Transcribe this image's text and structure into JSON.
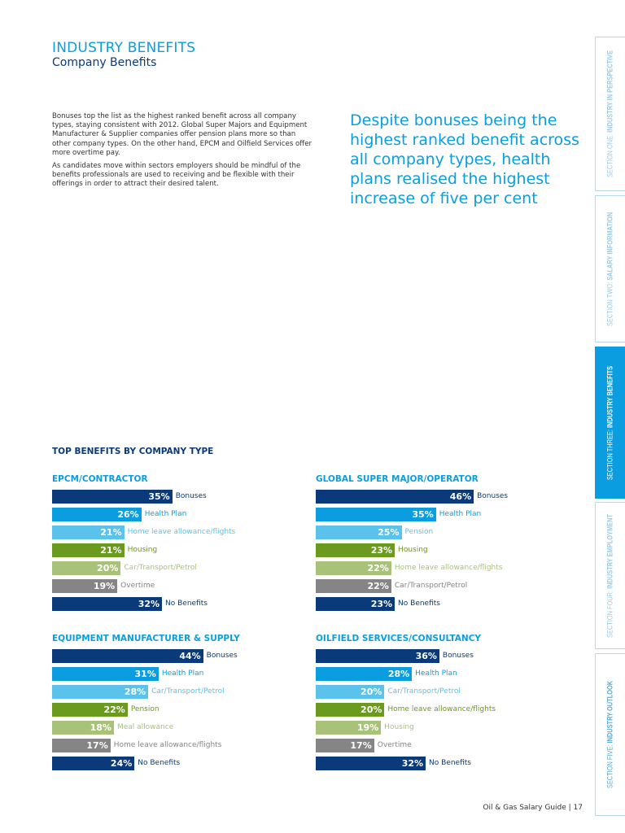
{
  "header": {
    "title": "INDUSTRY BENEFITS",
    "subtitle": "Company Benefits"
  },
  "body": [
    "Bonuses top the list as the highest ranked benefit across all company types, staying consistent with 2012. Global Super Majors and Equipment Manufacturer & Supplier companies offer pension plans more so than other company types. On the other hand, EPCM and Oilfield Services offer more overtime pay.",
    "As candidates move within sectors employers should be mindful of the benefits professionals are used to receiving and be flexible with their offerings in order to attract their desired talent."
  ],
  "quote": "Despite bonuses being the highest ranked benefit across all company types, health plans realised the highest increase of five per cent",
  "section_title": "TOP BENEFITS BY COMPANY TYPE",
  "colors": {
    "navy": "#0a3a7a",
    "blue": "#0a9ee0",
    "lightblue": "#5bc2ec",
    "green": "#6a9a1e",
    "lightgreen": "#a9c27a",
    "grey": "#858585"
  },
  "chart_data": [
    {
      "type": "bar",
      "title": "EPCM/CONTRACTOR",
      "categories": [
        "Bonuses",
        "Health Plan",
        "Home leave allowance/flights",
        "Housing",
        "Car/Transport/Petrol",
        "Overtime",
        "No Benefits"
      ],
      "values": [
        35,
        26,
        21,
        21,
        20,
        19,
        32
      ],
      "value_labels": [
        "35%",
        "26%",
        "21%",
        "21%",
        "20%",
        "19%",
        "32%"
      ]
    },
    {
      "type": "bar",
      "title": "GLOBAL SUPER MAJOR/OPERATOR",
      "categories": [
        "Bonuses",
        "Health Plan",
        "Pension",
        "Housing",
        "Home leave allowance/flights",
        "Car/Transport/Petrol",
        "No Benefits"
      ],
      "values": [
        46,
        35,
        25,
        23,
        22,
        22,
        23
      ],
      "value_labels": [
        "46%",
        "35%",
        "25%",
        "23%",
        "22%",
        "22%",
        "23%"
      ]
    },
    {
      "type": "bar",
      "title": "EQUIPMENT MANUFACTURER & SUPPLY",
      "categories": [
        "Bonuses",
        "Health Plan",
        "Car/Transport/Petrol",
        "Pension",
        "Meal allowance",
        "Home leave allowance/flights",
        "No Benefits"
      ],
      "values": [
        44,
        31,
        28,
        22,
        18,
        17,
        24
      ],
      "value_labels": [
        "44%",
        "31%",
        "28%",
        "22%",
        "18%",
        "17%",
        "24%"
      ]
    },
    {
      "type": "bar",
      "title": "OILFIELD SERVICES/CONSULTANCY",
      "categories": [
        "Bonuses",
        "Health Plan",
        "Car/Transport/Petrol",
        "Home leave allowance/flights",
        "Housing",
        "Overtime",
        "No Benefits"
      ],
      "values": [
        36,
        28,
        20,
        20,
        19,
        17,
        32
      ],
      "value_labels": [
        "36%",
        "28%",
        "20%",
        "20%",
        "19%",
        "17%",
        "32%"
      ]
    }
  ],
  "tabs": [
    {
      "prefix": "SECTION ONE: ",
      "name": "INDUSTRY IN PERSPECTIVE",
      "active": false
    },
    {
      "prefix": "SECTION TWO: ",
      "name": "SALARY INFORMATION",
      "active": false
    },
    {
      "prefix": "SECTION THREE: ",
      "name": "INDUSTRY BENEFITS",
      "active": true
    },
    {
      "prefix": "SECTION FOUR: ",
      "name": "INDUSTRY EMPLOYMENT",
      "active": false
    },
    {
      "prefix": "SECTION FIVE: ",
      "name": "INDUSTRY OUTLOOK",
      "active": false
    }
  ],
  "footer": "Oil & Gas Salary Guide | 17"
}
